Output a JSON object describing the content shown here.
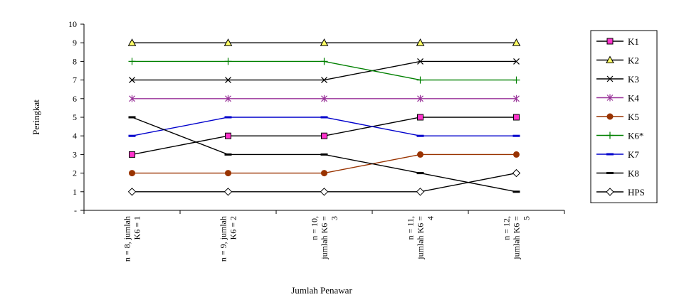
{
  "chart_data": {
    "type": "line",
    "title": "",
    "xlabel": "Jumlah Penawar",
    "ylabel": "Peringkat",
    "ylim": [
      0,
      10
    ],
    "y_ticks": [
      "-",
      "1",
      "2",
      "3",
      "4",
      "5",
      "6",
      "7",
      "8",
      "9",
      "10"
    ],
    "categories": [
      [
        "n = 8, jumlah",
        "K6 = 1"
      ],
      [
        "n = 9, jumlah",
        "K6 = 2"
      ],
      [
        "n = 10,",
        "jumlah K6 =",
        "3"
      ],
      [
        "n = 11,",
        "jumlah K6 =",
        "4"
      ],
      [
        "n = 12,",
        "jumlah K6 =",
        "5"
      ]
    ],
    "legend_position": "right",
    "grid": false,
    "series": [
      {
        "name": "K1",
        "values": [
          3,
          4,
          4,
          5,
          5
        ],
        "color": "#000000",
        "marker": "square",
        "marker_fill": "#ff33cc"
      },
      {
        "name": "K2",
        "values": [
          9,
          9,
          9,
          9,
          9
        ],
        "color": "#000000",
        "marker": "triangle",
        "marker_fill": "#ffff66"
      },
      {
        "name": "K3",
        "values": [
          7,
          7,
          7,
          8,
          8
        ],
        "color": "#000000",
        "marker": "x",
        "marker_fill": "none"
      },
      {
        "name": "K4",
        "values": [
          6,
          6,
          6,
          6,
          6
        ],
        "color": "#993399",
        "marker": "asterisk",
        "marker_fill": "none"
      },
      {
        "name": "K5",
        "values": [
          2,
          2,
          2,
          3,
          3
        ],
        "color": "#993300",
        "marker": "circle",
        "marker_fill": "#993300"
      },
      {
        "name": "K6*",
        "values": [
          8,
          8,
          8,
          7,
          7
        ],
        "color": "#008000",
        "marker": "plus",
        "marker_fill": "none"
      },
      {
        "name": "K7",
        "values": [
          4,
          5,
          5,
          4,
          4
        ],
        "color": "#0000cc",
        "marker": "dash",
        "marker_fill": "none"
      },
      {
        "name": "K8",
        "values": [
          5,
          3,
          3,
          2,
          1
        ],
        "color": "#000000",
        "marker": "dash",
        "marker_fill": "none"
      },
      {
        "name": "HPS",
        "values": [
          1,
          1,
          1,
          1,
          2
        ],
        "color": "#000000",
        "marker": "diamond",
        "marker_fill": "#ffffff"
      }
    ]
  }
}
